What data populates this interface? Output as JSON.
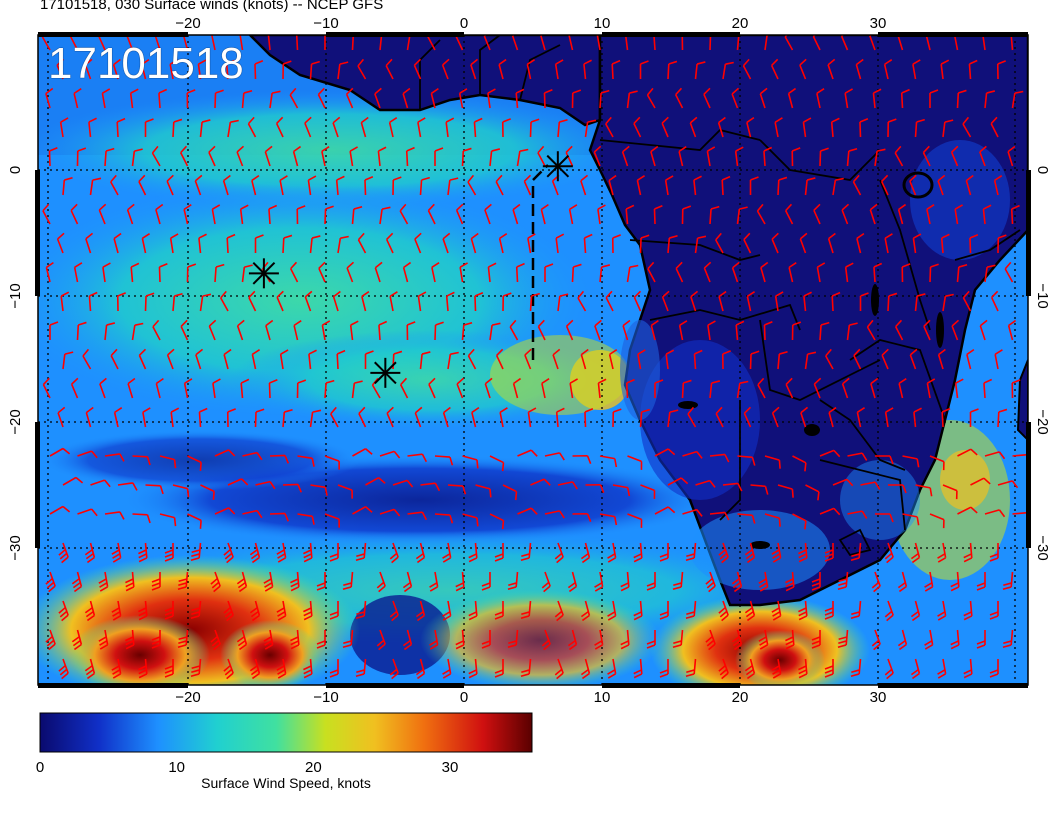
{
  "title": "17101518, 030 Surface winds (knots) -- NCEP GFS",
  "stamp": "17101518",
  "map": {
    "lon_ticks": [
      -20,
      -10,
      0,
      10,
      20,
      30
    ],
    "lat_ticks": [
      0,
      -10,
      -20,
      -30
    ],
    "lon_range": [
      -30,
      40
    ],
    "lat_range": [
      -40,
      10
    ],
    "grid": true,
    "barb_color": "#ff0000",
    "land_color": "#10107a",
    "coast_color": "#000000",
    "markers": [
      {
        "name": "asterisk-marker",
        "lon": 6.8,
        "lat": 0.3
      },
      {
        "name": "asterisk-marker",
        "lon": -14.5,
        "lat": -8.2
      },
      {
        "name": "asterisk-marker",
        "lon": -5.7,
        "lat": -16.1
      }
    ]
  },
  "colorbar": {
    "ticks": [
      0,
      10,
      20,
      30
    ],
    "range": [
      0,
      36
    ],
    "label": "Surface Wind Speed, knots",
    "colors": [
      "#0a0a6e",
      "#1030c8",
      "#1e90ff",
      "#20d0d0",
      "#40e0a0",
      "#c8e020",
      "#f0c020",
      "#f07010",
      "#d01010",
      "#5a0000"
    ]
  }
}
